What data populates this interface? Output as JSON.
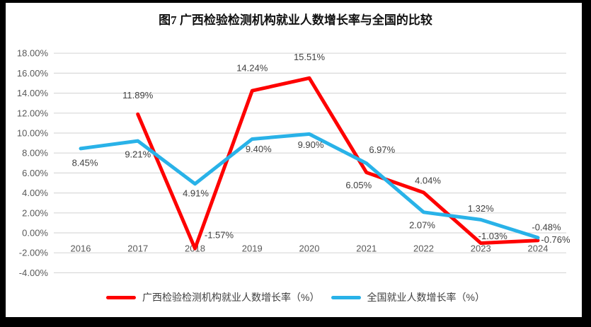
{
  "frame": {
    "border_color": "#000000",
    "background": "#ffffff"
  },
  "colors": {
    "guangxi_series": "#fe0000",
    "national_series": "#29b2e8",
    "gridline": "#d9d9d9",
    "axis_text": "#595959",
    "data_label_text": "#404040"
  },
  "legend": [
    {
      "label": "广西检验检测机构就业人数增长率（%）",
      "color": "#fe0000"
    },
    {
      "label": "全国就业人数增长率（%）",
      "color": "#29b2e8"
    }
  ],
  "chart_data": {
    "type": "line",
    "title": "图7 广西检验检测机构就业人数增长率与全国的比较",
    "categories": [
      "2016",
      "2017",
      "2018",
      "2019",
      "2020",
      "2021",
      "2022",
      "2023",
      "2024"
    ],
    "y_ticks": [
      "18.00%",
      "16.00%",
      "14.00%",
      "12.00%",
      "10.00%",
      "8.00%",
      "6.00%",
      "4.00%",
      "2.00%",
      "0.00%",
      "-2.00%",
      "-4.00%"
    ],
    "ylim": [
      -4,
      18
    ],
    "grid": true,
    "legend_position": "bottom",
    "xlabel": "",
    "ylabel": "",
    "series": [
      {
        "name": "广西检验检测机构就业人数增长率（%）",
        "color": "#fe0000",
        "values": [
          null,
          11.89,
          -1.57,
          14.24,
          15.51,
          6.05,
          4.04,
          -1.03,
          -0.76
        ],
        "labels": [
          "",
          "11.89%",
          "-1.57%",
          "14.24%",
          "15.51%",
          "6.05%",
          "4.04%",
          "-1.03%",
          "-0.76%"
        ]
      },
      {
        "name": "全国就业人数增长率（%）",
        "color": "#29b2e8",
        "values": [
          8.45,
          9.21,
          4.91,
          9.4,
          9.9,
          6.97,
          2.07,
          1.32,
          -0.48
        ],
        "labels": [
          "8.45%",
          "9.21%",
          "4.91%",
          "9.40%",
          "9.90%",
          "6.97%",
          "2.07%",
          "1.32%",
          "-0.48%"
        ]
      }
    ]
  }
}
